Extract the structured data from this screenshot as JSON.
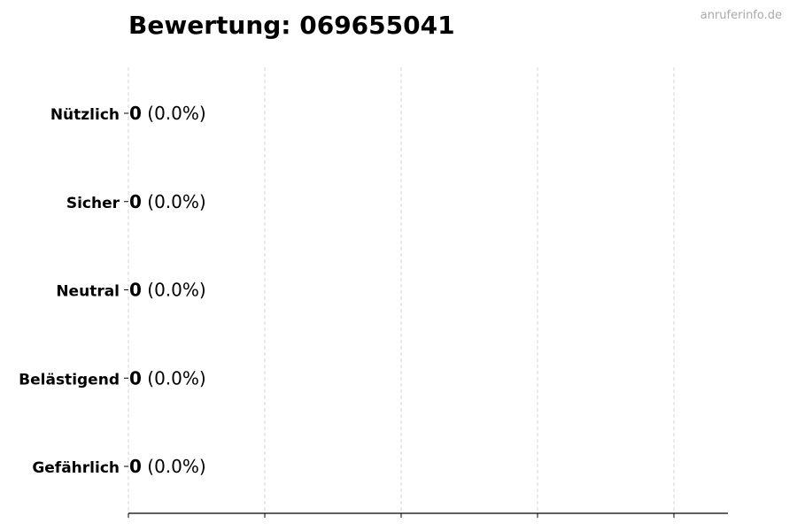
{
  "chart_data": {
    "type": "bar",
    "orientation": "horizontal",
    "title": "Bewertung: 069655041",
    "watermark": "anruferinfo.de",
    "categories": [
      "Nützlich",
      "Sicher",
      "Neutral",
      "Belästigend",
      "Gefährlich"
    ],
    "values": [
      0,
      0,
      0,
      0,
      0
    ],
    "data_labels": [
      {
        "count": "0",
        "percent": "(0.0%)"
      },
      {
        "count": "0",
        "percent": "(0.0%)"
      },
      {
        "count": "0",
        "percent": "(0.0%)"
      },
      {
        "count": "0",
        "percent": "(0.0%)"
      },
      {
        "count": "0",
        "percent": "(0.0%)"
      }
    ],
    "xlabel": "",
    "ylabel": "",
    "x_tick_labels_shown": false,
    "grid": "vertical dashed",
    "colors": {
      "bar_edge": "#000000",
      "grid": "#cccccc",
      "watermark": "#aaaaaa"
    }
  }
}
